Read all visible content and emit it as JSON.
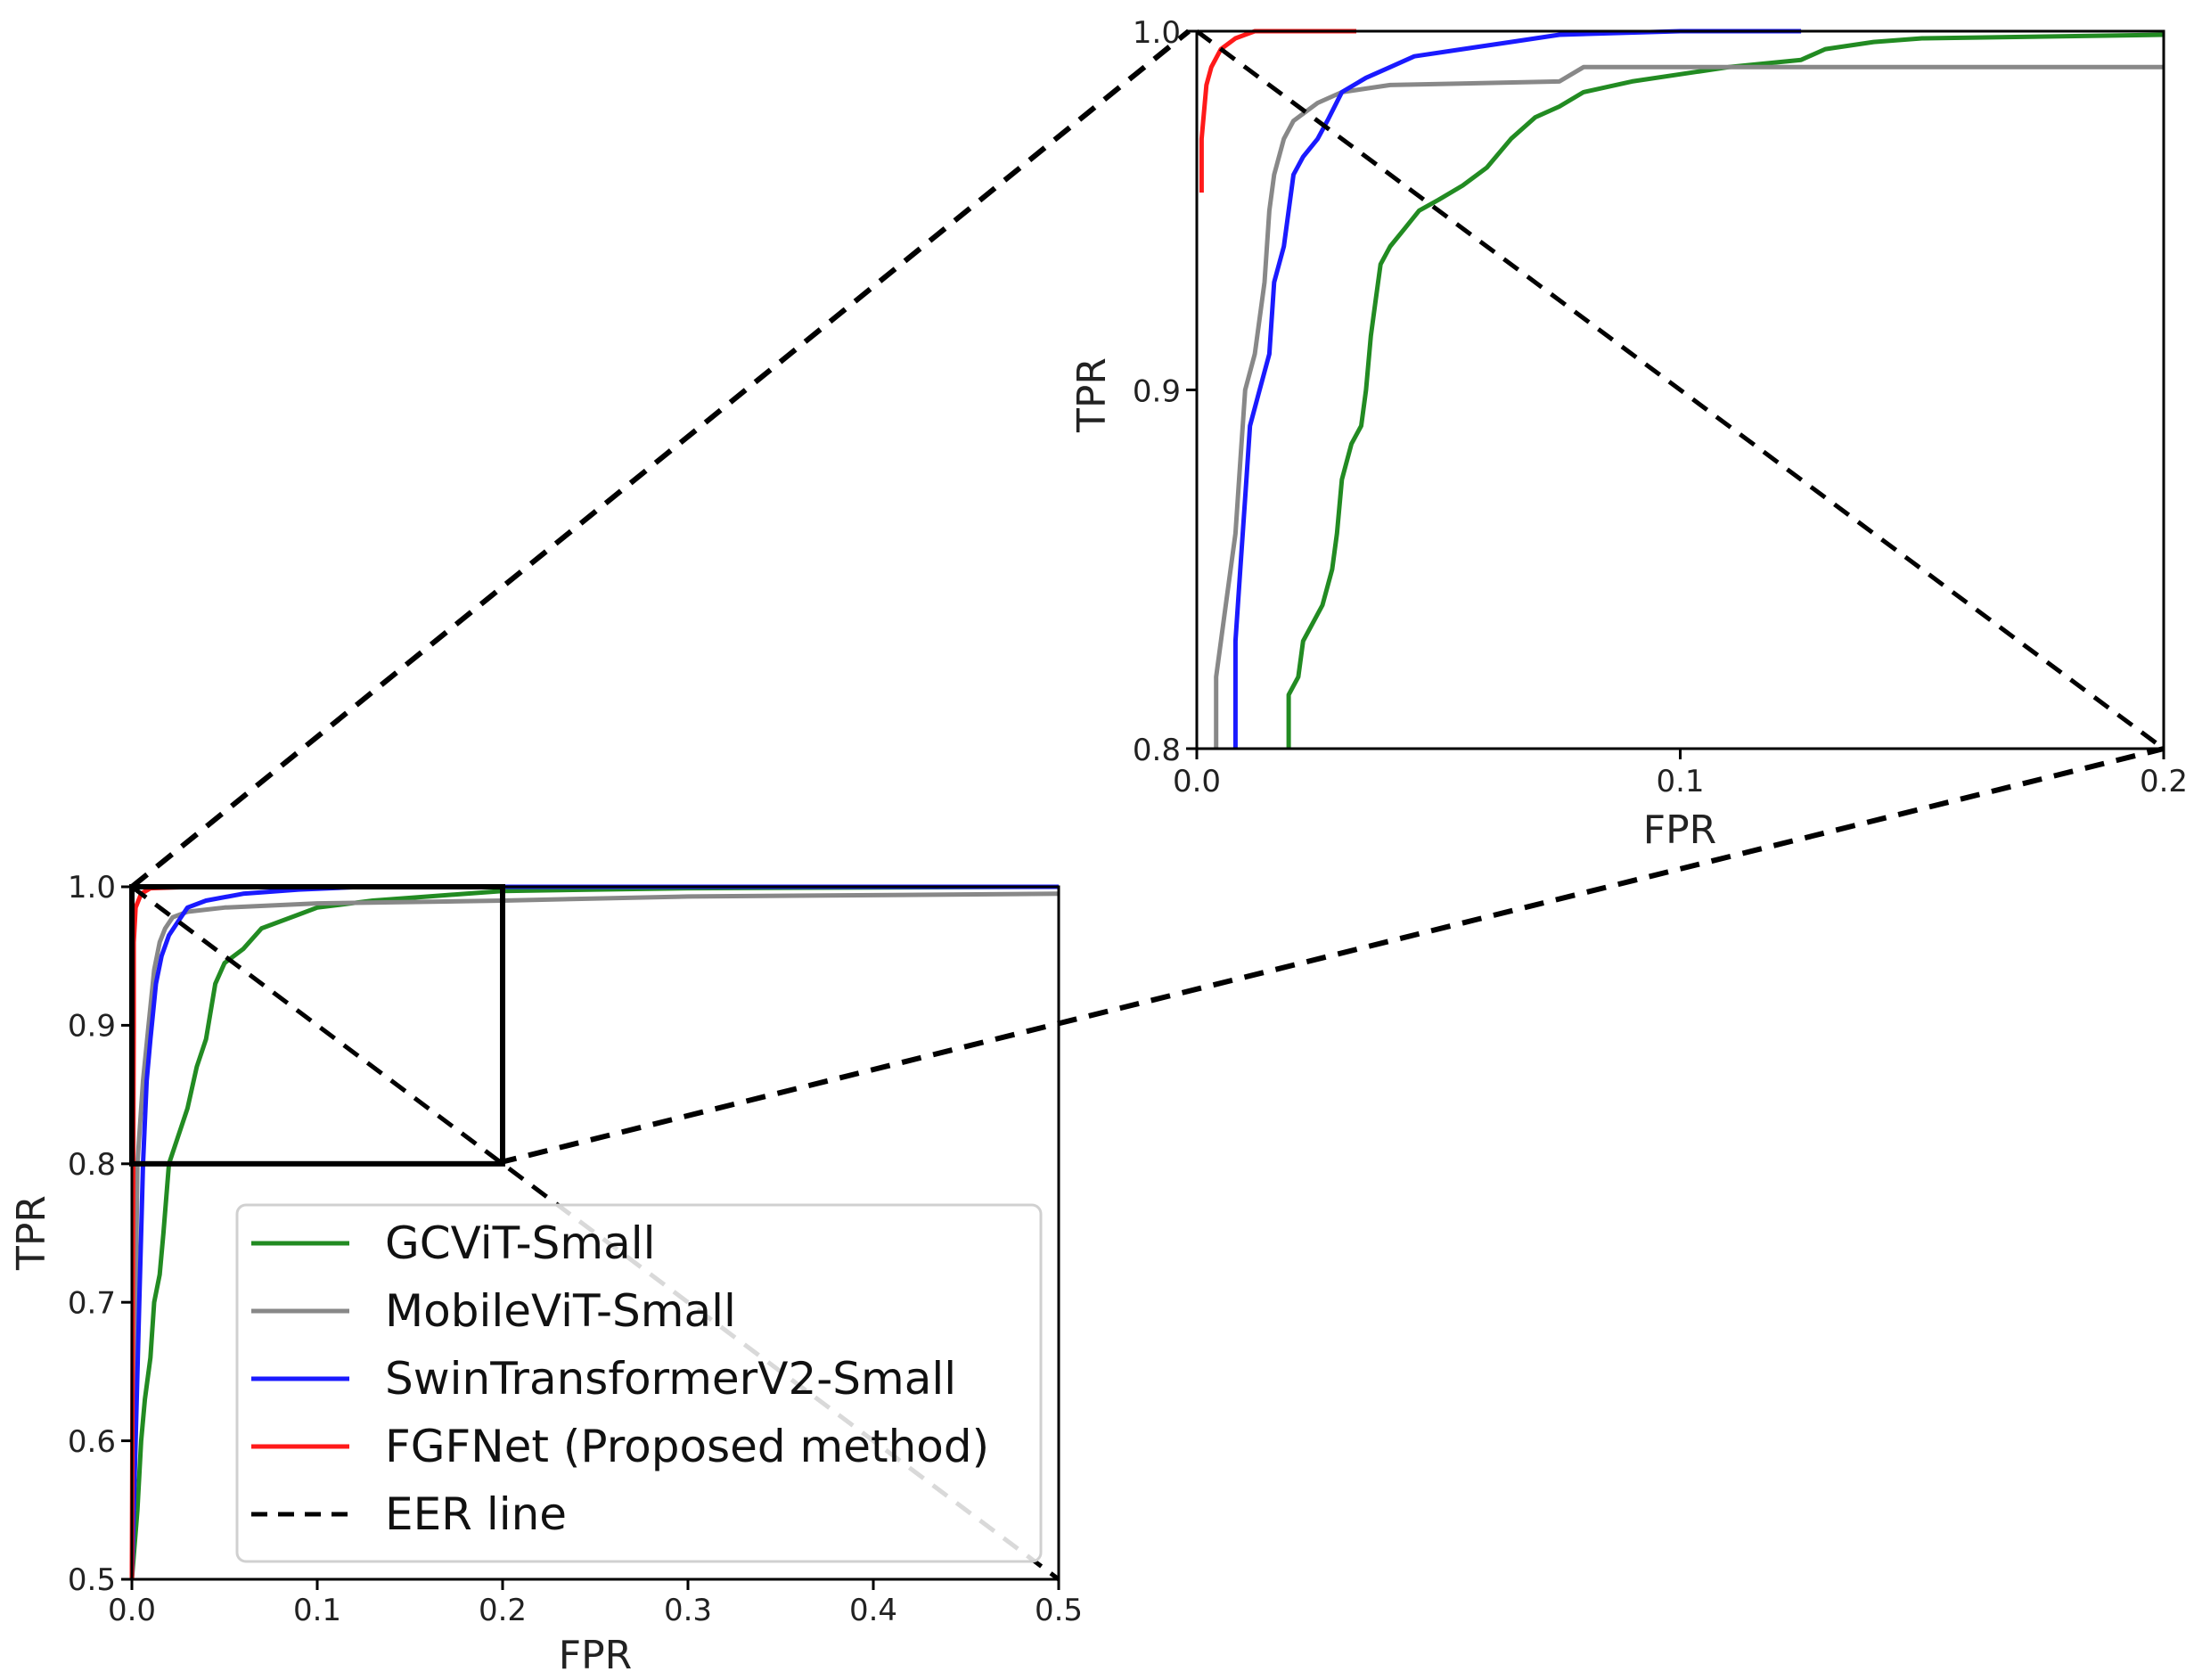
{
  "chart_data": [
    {
      "id": "main",
      "type": "line",
      "xlabel": "FPR",
      "ylabel": "TPR",
      "xlim": [
        0,
        0.5
      ],
      "ylim": [
        0.5,
        1.0
      ],
      "xticks": [
        "0.0",
        "0.1",
        "0.2",
        "0.3",
        "0.4",
        "0.5"
      ],
      "yticks": [
        "0.5",
        "0.6",
        "0.7",
        "0.8",
        "0.9",
        "1.0"
      ],
      "grid": false,
      "legend_position": "lower-center",
      "zoom_box": {
        "x": [
          0,
          0.2
        ],
        "y": [
          0.8,
          1.0
        ]
      },
      "series": [
        {
          "name": "GCViT-Small",
          "color": "#228b22",
          "style": "solid",
          "points": [
            [
              0.0,
              0.5
            ],
            [
              0.003,
              0.55
            ],
            [
              0.005,
              0.6
            ],
            [
              0.007,
              0.63
            ],
            [
              0.01,
              0.66
            ],
            [
              0.012,
              0.7
            ],
            [
              0.015,
              0.72
            ],
            [
              0.017,
              0.75
            ],
            [
              0.02,
              0.8
            ],
            [
              0.025,
              0.82
            ],
            [
              0.03,
              0.84
            ],
            [
              0.035,
              0.87
            ],
            [
              0.04,
              0.89
            ],
            [
              0.045,
              0.93
            ],
            [
              0.05,
              0.945
            ],
            [
              0.06,
              0.955
            ],
            [
              0.07,
              0.97
            ],
            [
              0.09,
              0.98
            ],
            [
              0.1,
              0.985
            ],
            [
              0.13,
              0.99
            ],
            [
              0.16,
              0.993
            ],
            [
              0.2,
              0.997
            ],
            [
              0.3,
              0.999
            ],
            [
              0.5,
              1.0
            ]
          ]
        },
        {
          "name": "MobileViT-Small",
          "color": "#888888",
          "style": "solid",
          "points": [
            [
              0.0,
              0.5
            ],
            [
              0.001,
              0.6
            ],
            [
              0.002,
              0.7
            ],
            [
              0.003,
              0.8
            ],
            [
              0.006,
              0.86
            ],
            [
              0.009,
              0.9
            ],
            [
              0.012,
              0.94
            ],
            [
              0.015,
              0.96
            ],
            [
              0.018,
              0.97
            ],
            [
              0.022,
              0.978
            ],
            [
              0.03,
              0.982
            ],
            [
              0.05,
              0.985
            ],
            [
              0.1,
              0.988
            ],
            [
              0.2,
              0.99
            ],
            [
              0.3,
              0.993
            ],
            [
              0.5,
              0.995
            ]
          ]
        },
        {
          "name": "SwinTransformerV2-Small",
          "color": "#1a1aff",
          "style": "solid",
          "points": [
            [
              0.0,
              0.5
            ],
            [
              0.002,
              0.6
            ],
            [
              0.004,
              0.7
            ],
            [
              0.006,
              0.8
            ],
            [
              0.008,
              0.86
            ],
            [
              0.01,
              0.89
            ],
            [
              0.013,
              0.93
            ],
            [
              0.016,
              0.95
            ],
            [
              0.02,
              0.965
            ],
            [
              0.025,
              0.975
            ],
            [
              0.03,
              0.985
            ],
            [
              0.04,
              0.99
            ],
            [
              0.06,
              0.995
            ],
            [
              0.09,
              0.998
            ],
            [
              0.125,
              1.0
            ],
            [
              0.5,
              1.0
            ]
          ]
        },
        {
          "name": "FGFNet (Proposed method)",
          "color": "#ff1a1a",
          "style": "solid",
          "points": [
            [
              0.0,
              0.5
            ],
            [
              0.0005,
              0.7
            ],
            [
              0.001,
              0.9
            ],
            [
              0.001,
              0.96
            ],
            [
              0.002,
              0.985
            ],
            [
              0.005,
              0.995
            ],
            [
              0.01,
              0.999
            ],
            [
              0.033,
              1.0
            ]
          ]
        },
        {
          "name": "EER line",
          "color": "#000000",
          "style": "dashed",
          "points": [
            [
              0.0,
              1.0
            ],
            [
              0.5,
              0.5
            ]
          ]
        }
      ]
    },
    {
      "id": "inset",
      "type": "line",
      "xlabel": "FPR",
      "ylabel": "TPR",
      "xlim": [
        0,
        0.2
      ],
      "ylim": [
        0.8,
        1.0
      ],
      "xticks": [
        "0.0",
        "0.1",
        "0.2"
      ],
      "yticks": [
        "0.8",
        "0.9",
        "1.0"
      ],
      "grid": false,
      "series": [
        {
          "name": "GCViT-Small",
          "color": "#228b22",
          "style": "solid",
          "points": [
            [
              0.019,
              0.8
            ],
            [
              0.019,
              0.815
            ],
            [
              0.021,
              0.82
            ],
            [
              0.022,
              0.83
            ],
            [
              0.024,
              0.835
            ],
            [
              0.026,
              0.84
            ],
            [
              0.028,
              0.85
            ],
            [
              0.029,
              0.86
            ],
            [
              0.03,
              0.875
            ],
            [
              0.032,
              0.885
            ],
            [
              0.034,
              0.89
            ],
            [
              0.035,
              0.9
            ],
            [
              0.036,
              0.915
            ],
            [
              0.037,
              0.925
            ],
            [
              0.038,
              0.935
            ],
            [
              0.04,
              0.94
            ],
            [
              0.043,
              0.945
            ],
            [
              0.046,
              0.95
            ],
            [
              0.05,
              0.953
            ],
            [
              0.055,
              0.957
            ],
            [
              0.06,
              0.962
            ],
            [
              0.065,
              0.97
            ],
            [
              0.07,
              0.976
            ],
            [
              0.075,
              0.979
            ],
            [
              0.08,
              0.983
            ],
            [
              0.09,
              0.986
            ],
            [
              0.1,
              0.988
            ],
            [
              0.11,
              0.99
            ],
            [
              0.125,
              0.992
            ],
            [
              0.13,
              0.995
            ],
            [
              0.14,
              0.997
            ],
            [
              0.15,
              0.998
            ],
            [
              0.2,
              0.999
            ]
          ]
        },
        {
          "name": "MobileViT-Small",
          "color": "#888888",
          "style": "solid",
          "points": [
            [
              0.004,
              0.8
            ],
            [
              0.004,
              0.82
            ],
            [
              0.006,
              0.84
            ],
            [
              0.008,
              0.86
            ],
            [
              0.009,
              0.88
            ],
            [
              0.01,
              0.9
            ],
            [
              0.012,
              0.91
            ],
            [
              0.014,
              0.93
            ],
            [
              0.015,
              0.95
            ],
            [
              0.016,
              0.96
            ],
            [
              0.018,
              0.97
            ],
            [
              0.02,
              0.975
            ],
            [
              0.025,
              0.98
            ],
            [
              0.03,
              0.983
            ],
            [
              0.04,
              0.985
            ],
            [
              0.075,
              0.986
            ],
            [
              0.08,
              0.99
            ],
            [
              0.2,
              0.99
            ]
          ]
        },
        {
          "name": "SwinTransformerV2-Small",
          "color": "#1a1aff",
          "style": "solid",
          "points": [
            [
              0.008,
              0.8
            ],
            [
              0.008,
              0.83
            ],
            [
              0.009,
              0.85
            ],
            [
              0.01,
              0.87
            ],
            [
              0.011,
              0.89
            ],
            [
              0.013,
              0.9
            ],
            [
              0.015,
              0.91
            ],
            [
              0.016,
              0.93
            ],
            [
              0.018,
              0.94
            ],
            [
              0.019,
              0.95
            ],
            [
              0.02,
              0.96
            ],
            [
              0.022,
              0.965
            ],
            [
              0.025,
              0.97
            ],
            [
              0.027,
              0.975
            ],
            [
              0.03,
              0.983
            ],
            [
              0.035,
              0.987
            ],
            [
              0.04,
              0.99
            ],
            [
              0.045,
              0.993
            ],
            [
              0.055,
              0.995
            ],
            [
              0.065,
              0.997
            ],
            [
              0.075,
              0.999
            ],
            [
              0.1,
              1.0
            ],
            [
              0.125,
              1.0
            ]
          ]
        },
        {
          "name": "FGFNet (Proposed method)",
          "color": "#ff1a1a",
          "style": "solid",
          "points": [
            [
              0.001,
              0.955
            ],
            [
              0.001,
              0.97
            ],
            [
              0.002,
              0.985
            ],
            [
              0.003,
              0.99
            ],
            [
              0.005,
              0.995
            ],
            [
              0.008,
              0.998
            ],
            [
              0.012,
              1.0
            ],
            [
              0.033,
              1.0
            ]
          ]
        },
        {
          "name": "EER line",
          "color": "#000000",
          "style": "dashed",
          "points": [
            [
              0.0,
              1.0
            ],
            [
              0.2,
              0.8
            ]
          ]
        }
      ]
    }
  ]
}
